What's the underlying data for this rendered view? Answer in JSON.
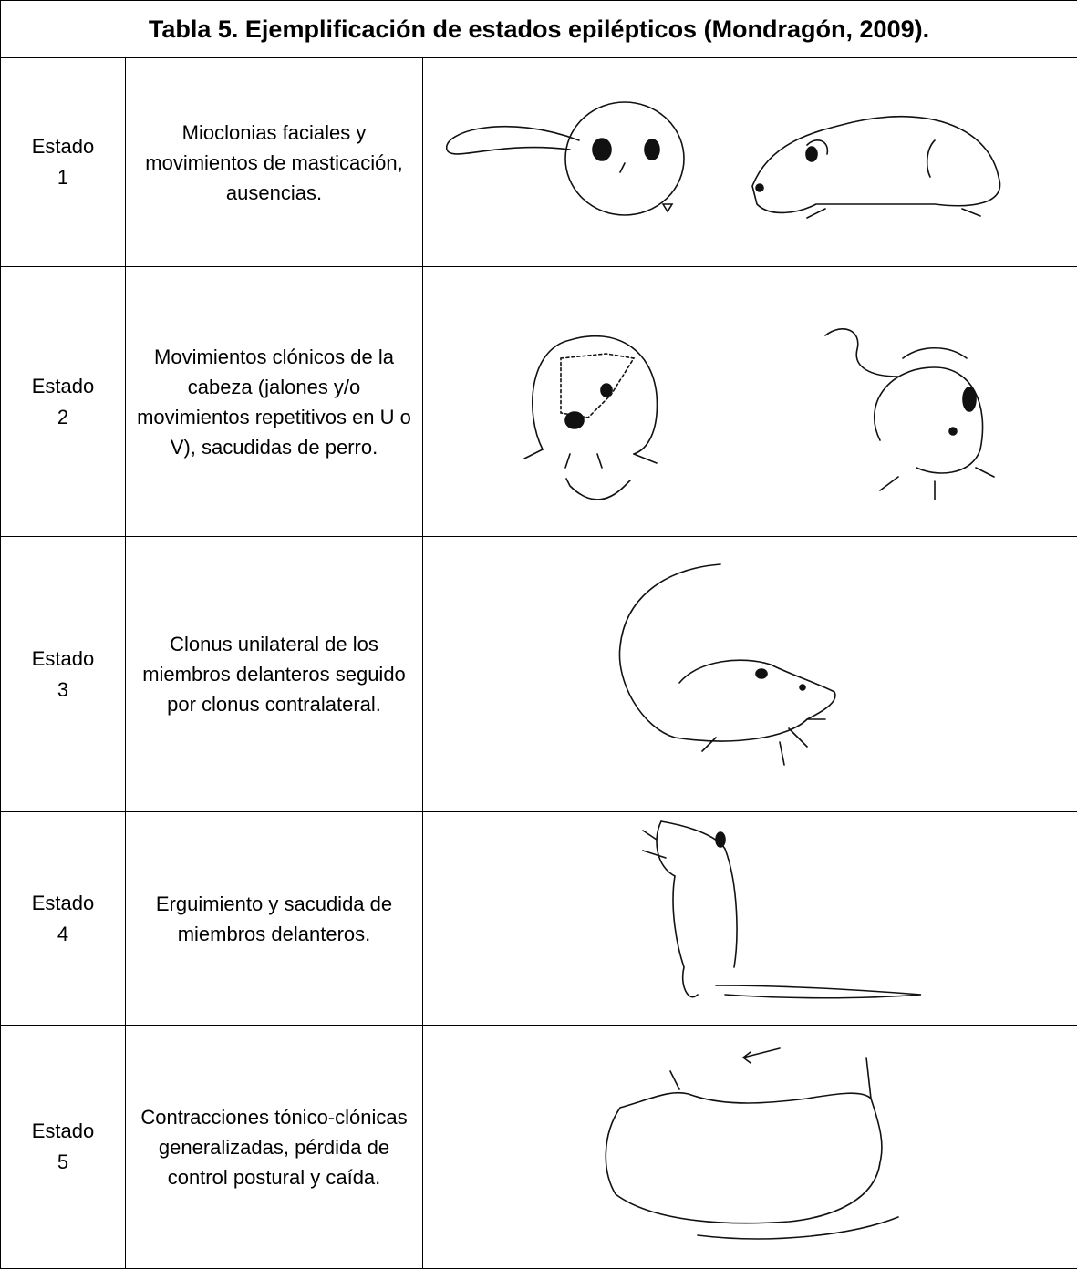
{
  "title": "Tabla 5. Ejemplificación de estados epilépticos (Mondragón, 2009).",
  "rows": [
    {
      "state": "Estado 1",
      "description": "Mioclonias faciales y movimientos de masticación, ausencias."
    },
    {
      "state": "Estado 2",
      "description": "Movimientos clónicos de la cabeza (jalones y/o movimientos repetitivos en U o V), sacudidas de perro."
    },
    {
      "state": "Estado 3",
      "description": "Clonus unilateral de los miembros delanteros seguido por clonus contralateral."
    },
    {
      "state": "Estado 4",
      "description": "Erguimiento y sacudida de miembros delanteros."
    },
    {
      "state": "Estado 5",
      "description": "Contracciones tónico-clónicas generalizadas, pérdida de control postural y caída."
    }
  ]
}
